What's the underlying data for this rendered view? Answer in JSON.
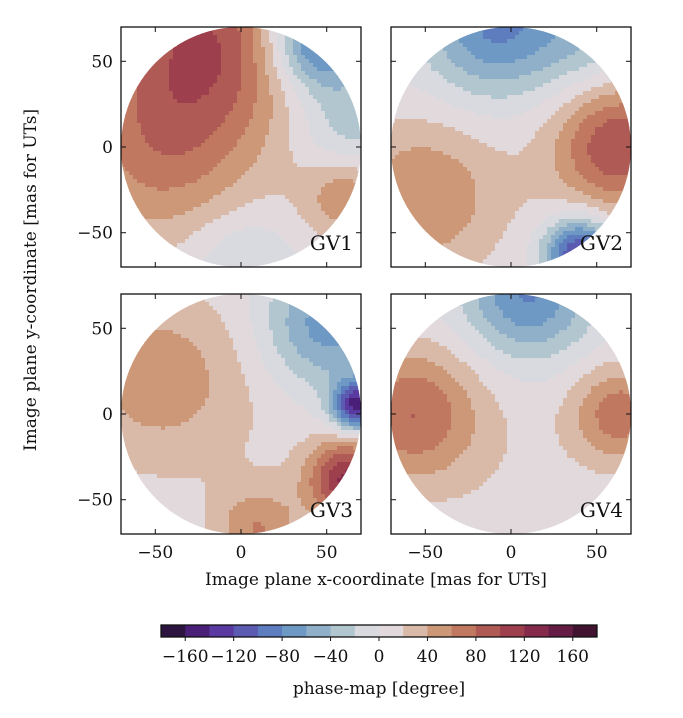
{
  "chart_data": {
    "type": "heatmap",
    "xlabel": "Image plane x-coordinate [mas for UTs]",
    "ylabel": "Image plane y-coordinate [mas for UTs]",
    "xlim": [
      -70,
      70
    ],
    "ylim": [
      -70,
      70
    ],
    "xticks": [
      -50,
      0,
      50
    ],
    "yticks": [
      50,
      0,
      -50
    ],
    "tick_labels": {
      "x": [
        "−50",
        "0",
        "50"
      ],
      "y": [
        "50",
        "0",
        "−50"
      ]
    },
    "grid": false,
    "panels": [
      {
        "label": "GV1",
        "blobs": [
          {
            "x": -20,
            "y": 65,
            "level": 85,
            "sigma": 38
          },
          {
            "x": -48,
            "y": 0,
            "level": 60,
            "sigma": 40
          },
          {
            "x": 45,
            "y": 62,
            "level": -110,
            "sigma": 20
          },
          {
            "x": 65,
            "y": 10,
            "level": -40,
            "sigma": 22
          },
          {
            "x": 62,
            "y": -28,
            "level": 55,
            "sigma": 18
          },
          {
            "x": 0,
            "y": -66,
            "level": -30,
            "sigma": 22
          },
          {
            "x": 0,
            "y": 0,
            "level": 10,
            "sigma": 60
          }
        ]
      },
      {
        "label": "GV2",
        "blobs": [
          {
            "x": -8,
            "y": 72,
            "level": -90,
            "sigma": 30
          },
          {
            "x": 45,
            "y": 62,
            "level": -30,
            "sigma": 20
          },
          {
            "x": -52,
            "y": -30,
            "level": 55,
            "sigma": 32
          },
          {
            "x": 63,
            "y": 0,
            "level": 95,
            "sigma": 26
          },
          {
            "x": 40,
            "y": -62,
            "level": -130,
            "sigma": 14
          },
          {
            "x": 0,
            "y": 0,
            "level": 8,
            "sigma": 60
          }
        ]
      },
      {
        "label": "GV3",
        "blobs": [
          {
            "x": 50,
            "y": 52,
            "level": -75,
            "sigma": 26
          },
          {
            "x": 68,
            "y": 5,
            "level": -150,
            "sigma": 10
          },
          {
            "x": 62,
            "y": -38,
            "level": 120,
            "sigma": 16
          },
          {
            "x": -50,
            "y": 22,
            "level": 45,
            "sigma": 38
          },
          {
            "x": 10,
            "y": -68,
            "level": 55,
            "sigma": 18
          },
          {
            "x": 0,
            "y": 0,
            "level": 10,
            "sigma": 60
          }
        ]
      },
      {
        "label": "GV4",
        "blobs": [
          {
            "x": 10,
            "y": 70,
            "level": -85,
            "sigma": 26
          },
          {
            "x": -58,
            "y": 0,
            "level": 75,
            "sigma": 28
          },
          {
            "x": 64,
            "y": 0,
            "level": 70,
            "sigma": 20
          },
          {
            "x": 0,
            "y": -50,
            "level": 8,
            "sigma": 40
          },
          {
            "x": 0,
            "y": 0,
            "level": 6,
            "sigma": 60
          }
        ]
      }
    ],
    "colorbar": {
      "label": "phase-map [degree]",
      "range": [
        -180,
        180
      ],
      "step": 20,
      "ticks": [
        -160,
        -120,
        -80,
        -40,
        0,
        40,
        80,
        120,
        160
      ],
      "tick_labels": [
        "−160",
        "−120",
        "−80",
        "−40",
        "0",
        "40",
        "80",
        "120",
        "160"
      ],
      "colors": [
        "#2c1340",
        "#4a1f78",
        "#5a3aa0",
        "#5b5bb2",
        "#5d7dbf",
        "#6e99c4",
        "#8fb0c8",
        "#b2c6d0",
        "#d8dae0",
        "#e2d9dc",
        "#d9b9a8",
        "#cc9878",
        "#c07860",
        "#b05a55",
        "#9e3f4e",
        "#862a4c",
        "#651d46",
        "#421331"
      ]
    }
  }
}
